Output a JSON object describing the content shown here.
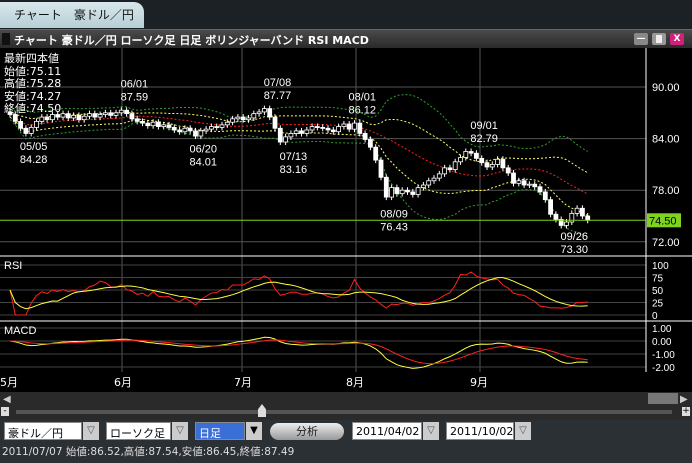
{
  "tab": {
    "label": "チャート　豪ドル／円"
  },
  "window": {
    "title": "チャート 豪ドル／円 ローソク足 日足 ボリンジャーバンド RSI MACD",
    "close": "X"
  },
  "info": {
    "heading": "最新四本値",
    "open": "始値:75.11",
    "high": "高値:75.28",
    "low": "安値:74.27",
    "close": "終値:74.50"
  },
  "price_axis": [
    "90.00",
    "84.00",
    "78.00",
    "72.00"
  ],
  "last_price": "74.50",
  "rsi_axis": [
    "100",
    "75",
    "50",
    "25",
    "0"
  ],
  "rsi_label": "RSI",
  "macd_axis": [
    "1.00",
    "0.00",
    "-1.00",
    "-2.00"
  ],
  "macd_label": "MACD",
  "months": [
    "5月",
    "6月",
    "7月",
    "8月",
    "9月"
  ],
  "colors": {
    "last_price": "#7fd320",
    "close_button": "#d0207a",
    "band_mid": "#ff2020",
    "band_1": "#ffff60",
    "band_2": "#30a030"
  },
  "chart_data": {
    "type": "candlestick",
    "annotations": [
      {
        "date": "05/05",
        "value": "84.28",
        "pos": "below"
      },
      {
        "date": "06/01",
        "value": "87.59",
        "pos": "above"
      },
      {
        "date": "06/20",
        "value": "84.01",
        "pos": "below"
      },
      {
        "date": "07/08",
        "value": "87.77",
        "pos": "above"
      },
      {
        "date": "07/13",
        "value": "83.16",
        "pos": "below"
      },
      {
        "date": "08/01",
        "value": "86.12",
        "pos": "above"
      },
      {
        "date": "08/09",
        "value": "76.43",
        "pos": "below"
      },
      {
        "date": "09/01",
        "value": "82.79",
        "pos": "above"
      },
      {
        "date": "09/26",
        "value": "73.30",
        "pos": "below"
      }
    ],
    "closes": [
      86.8,
      86.0,
      85.2,
      84.6,
      85.3,
      86.0,
      86.5,
      86.2,
      86.8,
      86.5,
      86.9,
      86.4,
      86.7,
      86.2,
      86.6,
      86.9,
      86.5,
      86.8,
      87.0,
      86.7,
      87.0,
      87.3,
      86.9,
      86.3,
      86.0,
      85.8,
      85.5,
      85.9,
      85.4,
      85.6,
      85.3,
      85.0,
      84.8,
      85.2,
      84.9,
      84.3,
      84.9,
      85.1,
      85.4,
      85.3,
      85.6,
      85.9,
      86.3,
      86.5,
      86.2,
      86.4,
      86.9,
      87.1,
      87.49,
      86.5,
      85.2,
      83.6,
      84.2,
      84.6,
      84.9,
      84.6,
      85.0,
      85.4,
      85.3,
      85.2,
      85.0,
      84.8,
      85.4,
      85.7,
      85.1,
      85.8,
      84.6,
      83.9,
      83.0,
      81.5,
      79.5,
      77.2,
      78.3,
      77.6,
      78.0,
      77.8,
      77.5,
      78.3,
      78.6,
      79.1,
      79.4,
      79.9,
      80.6,
      80.4,
      81.3,
      81.8,
      82.5,
      82.3,
      81.7,
      81.2,
      80.7,
      81.0,
      81.6,
      80.6,
      80.0,
      78.8,
      79.1,
      78.6,
      78.7,
      78.4,
      77.8,
      76.9,
      75.2,
      74.6,
      73.9,
      74.3,
      75.3,
      75.9,
      75.0,
      74.5
    ],
    "price_range": [
      70,
      92
    ]
  },
  "controls": {
    "pair": "豪ドル／円",
    "chart_type": "ローソク足",
    "period": "日足",
    "analyze": "分析",
    "from": "2011/04/02",
    "to": "2011/10/02"
  },
  "status": "2011/07/07 始値:86.52,高値:87.54,安値:86.45,終値:87.49"
}
